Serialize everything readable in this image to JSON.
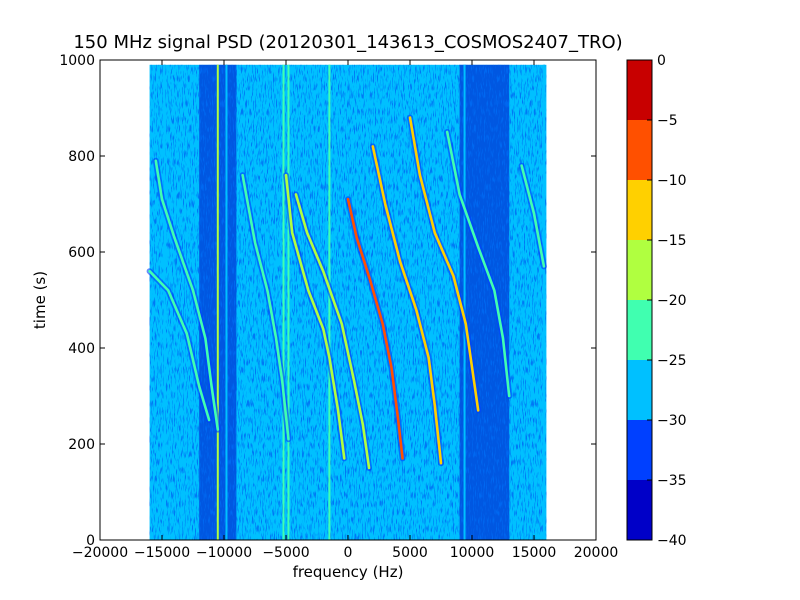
{
  "chart_data": {
    "type": "heatmap",
    "title": "150 MHz signal PSD (20120301_143613_COSMOS2407_TRO)",
    "xlabel": "frequency (Hz)",
    "ylabel": "time (s)",
    "xlim": [
      -20000,
      20000
    ],
    "ylim": [
      0,
      1000
    ],
    "data_extent": {
      "x": [
        -16000,
        16000
      ],
      "y": [
        0,
        990
      ]
    },
    "xticks": [
      -20000,
      -15000,
      -10000,
      -5000,
      0,
      5000,
      10000,
      15000,
      20000
    ],
    "xtick_labels": [
      "−20000",
      "−15000",
      "−10000",
      "−5000",
      "0",
      "5000",
      "10000",
      "15000",
      "20000"
    ],
    "yticks": [
      0,
      200,
      400,
      600,
      800,
      1000
    ],
    "ytick_labels": [
      "0",
      "200",
      "400",
      "600",
      "800",
      "1000"
    ],
    "background_level": -28,
    "colorbar": {
      "min": -40,
      "max": 0,
      "ticks": [
        0,
        -5,
        -10,
        -15,
        -20,
        -25,
        -30,
        -35,
        -40
      ],
      "tick_labels": [
        "0",
        "−5",
        "−10",
        "−15",
        "−20",
        "−25",
        "−30",
        "−35",
        "−40"
      ],
      "levels": [
        {
          "range": [
            -40,
            -35
          ],
          "color": "#0000c8"
        },
        {
          "range": [
            -35,
            -30
          ],
          "color": "#0040ff"
        },
        {
          "range": [
            -30,
            -25
          ],
          "color": "#00c0ff"
        },
        {
          "range": [
            -25,
            -20
          ],
          "color": "#40ffb0"
        },
        {
          "range": [
            -20,
            -15
          ],
          "color": "#b0ff40"
        },
        {
          "range": [
            -15,
            -10
          ],
          "color": "#ffd000"
        },
        {
          "range": [
            -10,
            -5
          ],
          "color": "#ff5000"
        },
        {
          "range": [
            -5,
            0
          ],
          "color": "#c80000"
        }
      ]
    },
    "dark_bands": [
      {
        "x": [
          -12000,
          -9000
        ],
        "level": -35
      },
      {
        "x": [
          9000,
          13000
        ],
        "level": -35
      }
    ],
    "vertical_lines": [
      {
        "x": -14800,
        "level": -25
      },
      {
        "x": -10500,
        "level": -15
      },
      {
        "x": -9800,
        "level": -25
      },
      {
        "x": -5200,
        "level": -20
      },
      {
        "x": -4800,
        "level": -20
      },
      {
        "x": -1500,
        "level": -20
      },
      {
        "x": 9400,
        "level": -25
      },
      {
        "x": 15800,
        "level": -25
      }
    ],
    "series": [
      {
        "level": -20,
        "points": [
          [
            -16000,
            560
          ],
          [
            -14500,
            520
          ],
          [
            -13000,
            430
          ],
          [
            -12000,
            320
          ],
          [
            -11200,
            250
          ]
        ]
      },
      {
        "level": -20,
        "points": [
          [
            -15500,
            790
          ],
          [
            -15000,
            710
          ],
          [
            -14000,
            630
          ],
          [
            -12500,
            520
          ],
          [
            -11500,
            420
          ],
          [
            -11000,
            320
          ],
          [
            -10500,
            230
          ]
        ]
      },
      {
        "level": -20,
        "points": [
          [
            -8500,
            760
          ],
          [
            -7500,
            620
          ],
          [
            -6500,
            520
          ],
          [
            -5800,
            420
          ],
          [
            -5300,
            330
          ],
          [
            -4800,
            210
          ]
        ]
      },
      {
        "level": -15,
        "points": [
          [
            -5000,
            760
          ],
          [
            -4500,
            640
          ],
          [
            -3200,
            520
          ],
          [
            -2000,
            440
          ],
          [
            -1500,
            380
          ],
          [
            -800,
            270
          ],
          [
            -300,
            170
          ]
        ]
      },
      {
        "level": -15,
        "points": [
          [
            -4200,
            720
          ],
          [
            -3300,
            640
          ],
          [
            -2000,
            560
          ],
          [
            -500,
            450
          ],
          [
            500,
            330
          ],
          [
            1200,
            240
          ],
          [
            1700,
            150
          ]
        ]
      },
      {
        "level": -5,
        "points": [
          [
            0,
            710
          ],
          [
            700,
            630
          ],
          [
            1800,
            540
          ],
          [
            2800,
            450
          ],
          [
            3500,
            360
          ],
          [
            4000,
            260
          ],
          [
            4400,
            170
          ]
        ]
      },
      {
        "level": -10,
        "points": [
          [
            2000,
            820
          ],
          [
            3000,
            700
          ],
          [
            4200,
            580
          ],
          [
            5500,
            480
          ],
          [
            6500,
            380
          ],
          [
            7000,
            280
          ],
          [
            7500,
            160
          ]
        ]
      },
      {
        "level": -10,
        "points": [
          [
            5000,
            880
          ],
          [
            5800,
            760
          ],
          [
            7000,
            640
          ],
          [
            8500,
            550
          ],
          [
            9500,
            450
          ],
          [
            10000,
            360
          ],
          [
            10500,
            270
          ]
        ]
      },
      {
        "level": -20,
        "points": [
          [
            8000,
            850
          ],
          [
            9000,
            720
          ],
          [
            10500,
            610
          ],
          [
            11800,
            520
          ],
          [
            12500,
            420
          ],
          [
            13000,
            300
          ]
        ]
      },
      {
        "level": -20,
        "points": [
          [
            14000,
            780
          ],
          [
            15000,
            680
          ],
          [
            15800,
            570
          ]
        ]
      }
    ]
  }
}
